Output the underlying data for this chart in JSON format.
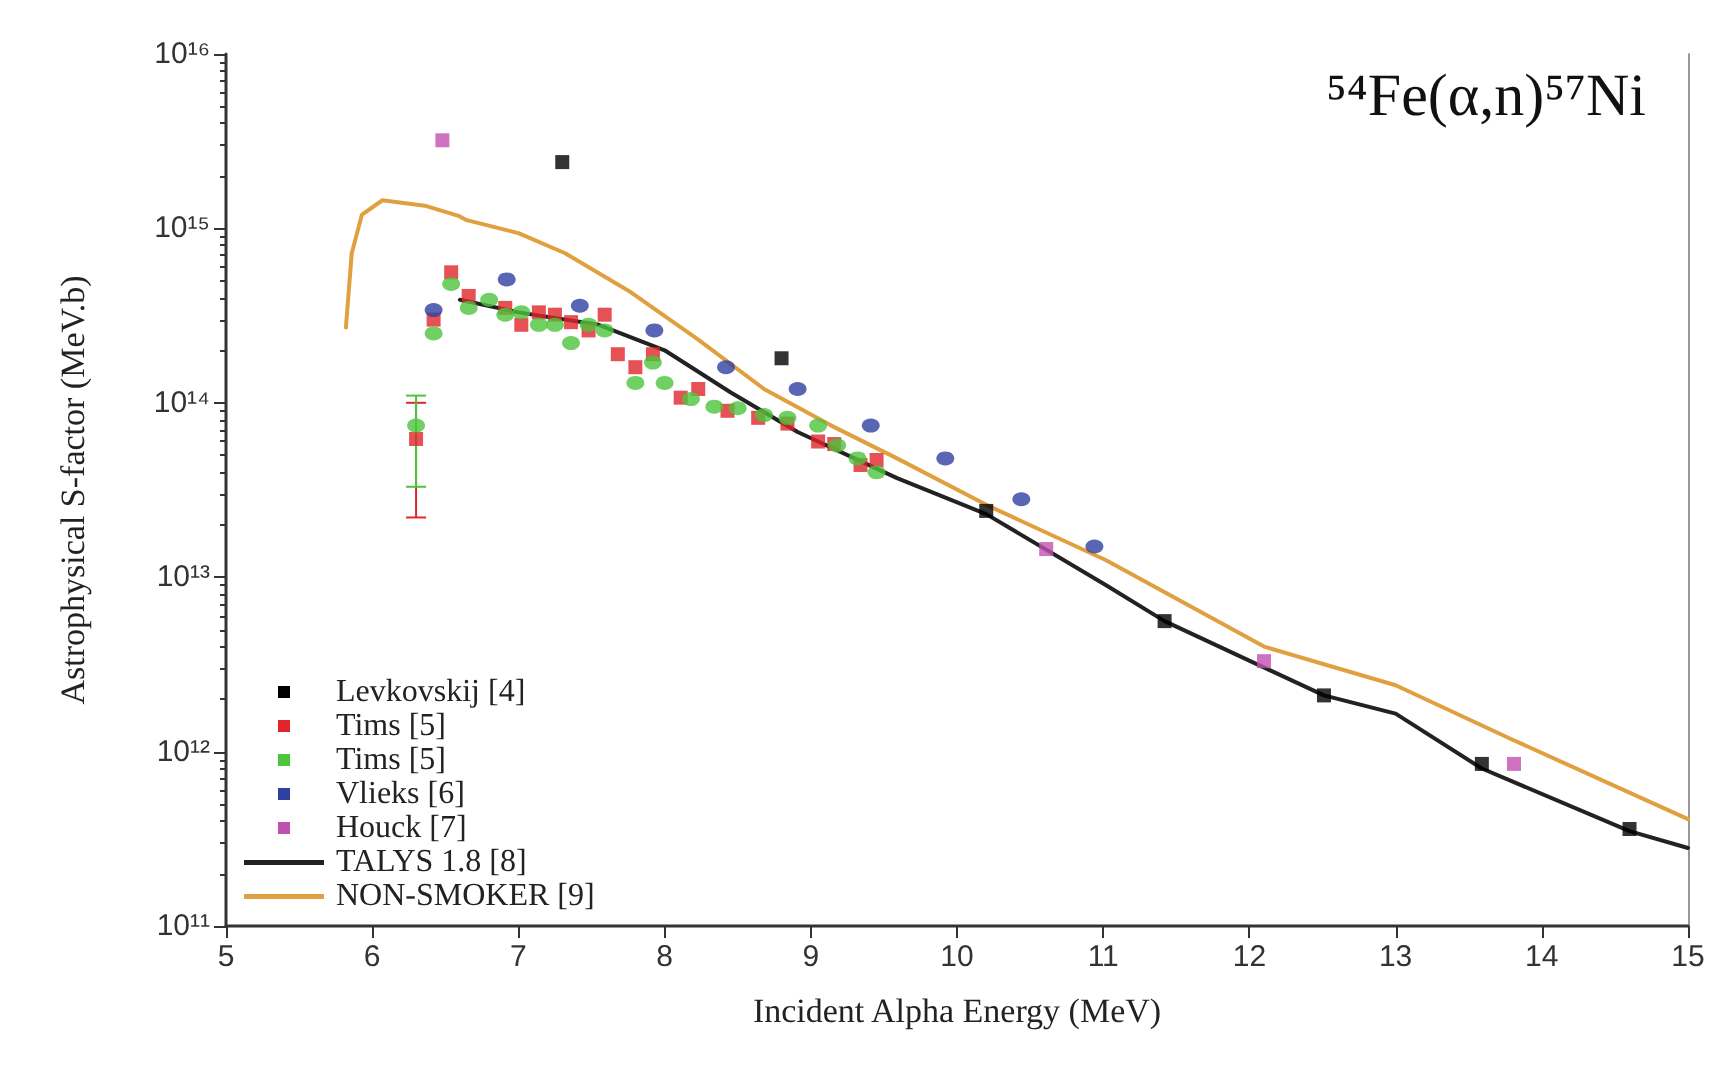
{
  "chart_data": {
    "type": "scatter",
    "xlabel": "Incident Alpha Energy (MeV)",
    "ylabel": "Astrophysical S-factor (MeV.b)",
    "annotations": [
      "⁵⁴Fe(α,n)⁵⁷Ni"
    ],
    "log": "y",
    "grid": false,
    "legend": "bottom left",
    "xlim": [
      5,
      15
    ],
    "xticks": [
      5,
      6,
      7,
      8,
      9,
      10,
      11,
      12,
      13,
      14,
      15
    ],
    "ylim": [
      100000000000.0,
      1e+16
    ],
    "yticks": [
      {
        "value": 100000000000.0,
        "label": "10¹¹"
      },
      {
        "value": 1000000000000.0,
        "label": "10¹²"
      },
      {
        "value": 10000000000000.0,
        "label": "10¹³"
      },
      {
        "value": 100000000000000.0,
        "label": "10¹⁴"
      },
      {
        "value": 1000000000000000.0,
        "label": "10¹⁵"
      },
      {
        "value": 1e+16,
        "label": "10¹⁶"
      }
    ],
    "series": [
      {
        "name": "Levkovskij [4]",
        "marker": "square",
        "color": "#000000",
        "x": [
          7.3,
          8.8,
          10.2,
          11.42,
          12.51,
          13.59,
          14.6
        ],
        "values": [
          2400000000000000.0,
          180000000000000.0,
          24000000000000.0,
          5600000000000.0,
          2100000000000.0,
          850000000000.0,
          360000000000.0
        ]
      },
      {
        "name": "Tims [5]",
        "marker": "square",
        "color": "#e0262a",
        "x": [
          6.3,
          6.42,
          6.54,
          6.66,
          6.91,
          7.02,
          7.14,
          7.25,
          7.36,
          7.48,
          7.59,
          7.68,
          7.8,
          7.92,
          8.11,
          8.23,
          8.43,
          8.64,
          8.84,
          9.05,
          9.16,
          9.34,
          9.45
        ],
        "values": [
          62000000000000.0,
          300000000000000.0,
          560000000000000.0,
          410000000000000.0,
          350000000000000.0,
          280000000000000.0,
          330000000000000.0,
          320000000000000.0,
          290000000000000.0,
          260000000000000.0,
          320000000000000.0,
          190000000000000.0,
          160000000000000.0,
          190000000000000.0,
          107000000000000.0,
          120000000000000.0,
          90000000000000.0,
          82000000000000.0,
          76000000000000.0,
          60000000000000.0,
          58000000000000.0,
          44000000000000.0,
          47000000000000.0
        ],
        "errors": [
          [
            22000000000000.0,
            100000000000000.0
          ],
          null,
          null,
          null,
          null,
          null,
          null,
          null,
          null,
          null,
          null,
          null,
          null,
          null,
          null,
          null,
          null,
          null,
          null,
          null,
          null,
          null,
          null
        ]
      },
      {
        "name": "Tims [5]",
        "marker": "circle",
        "color": "#4cc43c",
        "x": [
          6.3,
          6.42,
          6.54,
          6.66,
          6.8,
          6.91,
          7.02,
          7.14,
          7.25,
          7.36,
          7.48,
          7.59,
          7.8,
          7.92,
          8.0,
          8.18,
          8.34,
          8.5,
          8.68,
          8.84,
          9.05,
          9.18,
          9.32,
          9.45
        ],
        "values": [
          74000000000000.0,
          250000000000000.0,
          480000000000000.0,
          350000000000000.0,
          390000000000000.0,
          320000000000000.0,
          330000000000000.0,
          280000000000000.0,
          280000000000000.0,
          220000000000000.0,
          280000000000000.0,
          260000000000000.0,
          130000000000000.0,
          170000000000000.0,
          130000000000000.0,
          105000000000000.0,
          95000000000000.0,
          93000000000000.0,
          85000000000000.0,
          82000000000000.0,
          74000000000000.0,
          57000000000000.0,
          48000000000000.0,
          40000000000000.0
        ],
        "errors": [
          [
            33000000000000.0,
            110000000000000.0
          ],
          null,
          null,
          null,
          null,
          null,
          null,
          null,
          null,
          null,
          null,
          null,
          null,
          null,
          null,
          null,
          null,
          null,
          null,
          null,
          null,
          null,
          null,
          null
        ]
      },
      {
        "name": "Vlieks [6]",
        "marker": "circle",
        "color": "#3040a0",
        "x": [
          6.42,
          6.92,
          7.42,
          7.93,
          8.42,
          8.91,
          9.41,
          9.92,
          10.44,
          10.94
        ],
        "values": [
          340000000000000.0,
          510000000000000.0,
          360000000000000.0,
          260000000000000.0,
          160000000000000.0,
          120000000000000.0,
          74000000000000.0,
          48000000000000.0,
          28000000000000.0,
          15000000000000.0
        ]
      },
      {
        "name": "Houck [7]",
        "marker": "square",
        "color": "#c050b0",
        "x": [
          6.48,
          10.61,
          12.1,
          13.81
        ],
        "values": [
          3200000000000000.0,
          14500000000000.0,
          3300000000000.0,
          850000000000.0
        ]
      },
      {
        "name": "TALYS 1.8 [8]",
        "type": "line",
        "marker": "none",
        "color": "#222222",
        "x": [
          6.6,
          7.0,
          7.55,
          8.0,
          8.45,
          8.91,
          9.59,
          10.2,
          11.02,
          11.42,
          12.51,
          13.0,
          13.59,
          14.6,
          15.0
        ],
        "values": [
          390000000000000.0,
          330000000000000.0,
          280000000000000.0,
          200000000000000.0,
          115000000000000.0,
          68000000000000.0,
          37000000000000.0,
          23000000000000.0,
          9000000000000.0,
          5600000000000.0,
          2100000000000.0,
          1650000000000.0,
          800000000000.0,
          350000000000.0,
          280000000000.0
        ]
      },
      {
        "name": "NON-SMOKER [9]",
        "type": "line",
        "marker": "none",
        "color": "#e0a040",
        "x": [
          5.82,
          5.86,
          5.93,
          6.07,
          6.36,
          6.59,
          6.64,
          7.0,
          7.32,
          7.77,
          8.23,
          8.68,
          9.14,
          9.59,
          10.2,
          11.02,
          12.1,
          13.0,
          13.8,
          15.0
        ],
        "values": [
          270000000000000.0,
          720000000000000.0,
          1200000000000000.0,
          1450000000000000.0,
          1350000000000000.0,
          1180000000000000.0,
          1120000000000000.0,
          940000000000000.0,
          720000000000000.0,
          430000000000000.0,
          230000000000000.0,
          120000000000000.0,
          74000000000000.0,
          48000000000000.0,
          26000000000000.0,
          12500000000000.0,
          4000000000000.0,
          2400000000000.0,
          1170000000000.0,
          410000000000.0
        ]
      }
    ]
  }
}
